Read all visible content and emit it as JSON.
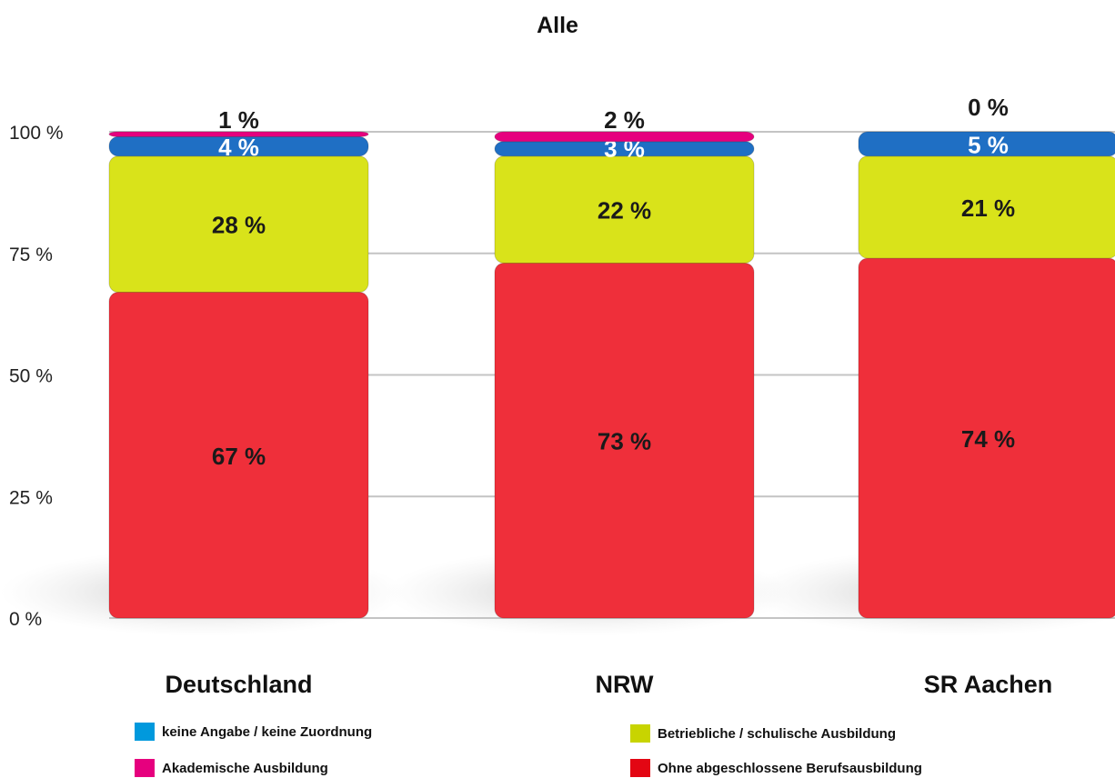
{
  "chart_data": {
    "type": "bar",
    "stacked": true,
    "title": "Alle",
    "categories": [
      "Deutschland",
      "NRW",
      "SR Aachen"
    ],
    "ylim": [
      0,
      100
    ],
    "yticks": [
      "0 %",
      "25 %",
      "50 %",
      "75 %",
      "100 %"
    ],
    "grid": true,
    "legend_position": "bottom",
    "series": [
      {
        "name": "Ohne abgeschlossene Berufsausbildung",
        "color": "#ef2f3a",
        "values": [
          67,
          73,
          74
        ],
        "labels": [
          "67 %",
          "73 %",
          "74 %"
        ]
      },
      {
        "name": "Betriebliche / schulische Ausbildung",
        "color": "#d9e31a",
        "values": [
          28,
          22,
          21
        ],
        "labels": [
          "28 %",
          "22 %",
          "21 %"
        ]
      },
      {
        "name": "keine Angabe / keine Zuordnung",
        "color": "#1f6fc4",
        "values": [
          4,
          3,
          5
        ],
        "labels": [
          "4 %",
          "3 %",
          "5 %"
        ]
      },
      {
        "name": "Akademische Ausbildung",
        "color": "#e6007e",
        "values": [
          1,
          2,
          0
        ],
        "labels": [
          "1 %",
          "2 %",
          "0 %"
        ]
      }
    ]
  },
  "legend": {
    "items": [
      {
        "label": "keine Angabe / keine Zuordnung",
        "color": "#0099dd"
      },
      {
        "label": "Betriebliche / schulische Ausbildung",
        "color": "#c8d400"
      },
      {
        "label": "Akademische Ausbildung",
        "color": "#e6007e"
      },
      {
        "label": "Ohne abgeschlossene Berufsausbildung",
        "color": "#e30613"
      }
    ]
  }
}
